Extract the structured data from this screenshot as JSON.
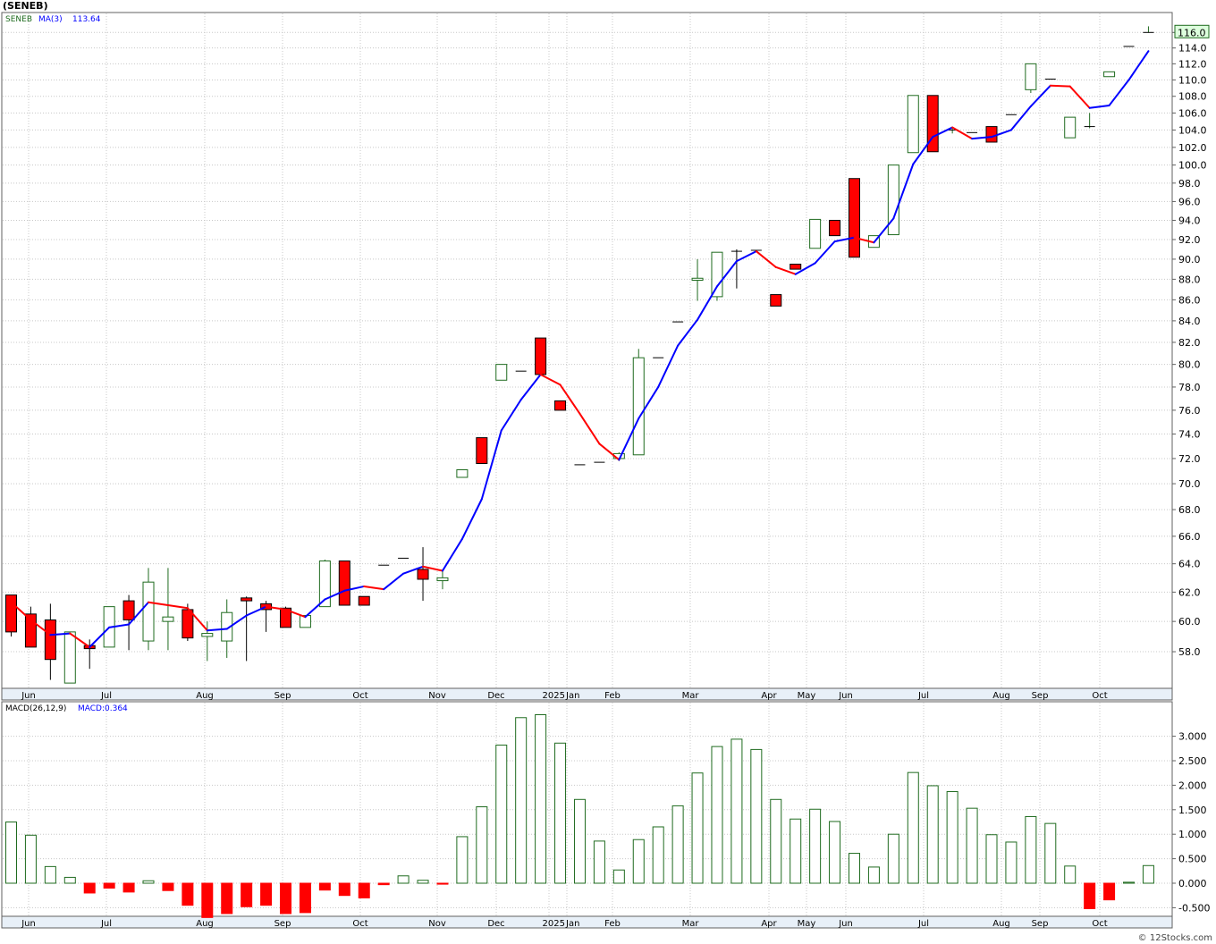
{
  "title": "(SENEB)",
  "watermark": "© 12Stocks.com",
  "price_legend": {
    "symbol": "SENEB",
    "ma_label": "MA(3)",
    "ma_value": "113.64"
  },
  "macd_legend": {
    "label": "MACD(26,12,9)",
    "value_label": "MACD:0.364"
  },
  "last_price_label": "116.0",
  "colors": {
    "up_candle": "#1f6b1f",
    "down_candle": "#ff0000",
    "ma_rising": "#0000ff",
    "ma_falling": "#ff0000",
    "macd_pos": "#1f6b1f",
    "macd_neg": "#ff0000",
    "axis_strip": "#e8f0f8",
    "grid": "#c8c8c8"
  },
  "chart_data": [
    {
      "type": "candlestick",
      "y_ticks": [
        "58.0",
        "60.0",
        "62.0",
        "64.0",
        "66.0",
        "68.0",
        "70.0",
        "72.0",
        "74.0",
        "76.0",
        "78.0",
        "80.0",
        "82.0",
        "84.0",
        "86.0",
        "88.0",
        "90.0",
        "92.0",
        "94.0",
        "96.0",
        "98.0",
        "100.0",
        "102.0",
        "104.0",
        "106.0",
        "108.0",
        "110.0",
        "112.0",
        "114.0",
        "116.0"
      ],
      "x_labels": [
        "Jun",
        "Jul",
        "Aug",
        "Sep",
        "Oct",
        "Nov",
        "Dec",
        "2025",
        "Jan",
        "Feb",
        "Mar",
        "Apr",
        "May",
        "Jun",
        "Jul",
        "Aug",
        "Sep",
        "Oct"
      ],
      "candles": [
        [
          61.8,
          61.8,
          59.0,
          59.3
        ],
        [
          60.5,
          61.0,
          58.3,
          58.3
        ],
        [
          60.1,
          61.2,
          56.2,
          57.5
        ],
        [
          56.0,
          59.2,
          56.0,
          59.3
        ],
        [
          58.4,
          58.8,
          56.9,
          58.2
        ],
        [
          58.3,
          61.0,
          58.3,
          61.0
        ],
        [
          61.4,
          61.8,
          58.1,
          60.1
        ],
        [
          58.7,
          63.7,
          58.1,
          62.7
        ],
        [
          60.0,
          63.7,
          58.1,
          60.3
        ],
        [
          60.8,
          61.2,
          58.7,
          58.9
        ],
        [
          59.0,
          60.0,
          57.4,
          59.2
        ],
        [
          58.7,
          61.5,
          57.6,
          60.6
        ],
        [
          61.6,
          61.7,
          57.4,
          61.4
        ],
        [
          61.2,
          61.4,
          59.3,
          60.8
        ],
        [
          60.9,
          61.0,
          59.6,
          59.6
        ],
        [
          59.6,
          60.4,
          59.6,
          60.4
        ],
        [
          61.0,
          64.3,
          61.0,
          64.2
        ],
        [
          64.2,
          64.2,
          61.1,
          61.1
        ],
        [
          61.7,
          61.7,
          61.1,
          61.1
        ],
        [
          63.9,
          63.9,
          63.9,
          63.9
        ],
        [
          64.4,
          64.4,
          64.4,
          64.4
        ],
        [
          63.6,
          65.2,
          61.4,
          62.9
        ],
        [
          62.8,
          63.6,
          62.2,
          63.0
        ],
        [
          70.5,
          71.1,
          70.5,
          71.1
        ],
        [
          73.7,
          73.7,
          71.6,
          71.6
        ],
        [
          78.6,
          80.0,
          78.6,
          80.0
        ],
        [
          79.4,
          79.4,
          79.4,
          79.4
        ],
        [
          82.4,
          82.4,
          79.1,
          79.1
        ],
        [
          76.8,
          76.8,
          76.0,
          76.0
        ],
        [
          71.5,
          71.5,
          71.5,
          71.5
        ],
        [
          71.7,
          71.7,
          71.7,
          71.7
        ],
        [
          72.0,
          72.5,
          71.8,
          72.4
        ],
        [
          72.3,
          81.4,
          72.3,
          80.6
        ],
        [
          80.6,
          80.6,
          80.6,
          80.6
        ],
        [
          83.9,
          83.9,
          83.9,
          83.9
        ],
        [
          87.9,
          90.0,
          85.9,
          88.1
        ],
        [
          86.3,
          90.7,
          85.9,
          90.7
        ],
        [
          90.8,
          91.0,
          87.1,
          90.7
        ],
        [
          90.9,
          90.9,
          90.9,
          90.9
        ],
        [
          86.5,
          86.5,
          85.4,
          85.4
        ],
        [
          89.5,
          89.5,
          89.0,
          89.0
        ],
        [
          91.1,
          94.1,
          91.1,
          94.1
        ],
        [
          94.0,
          94.0,
          92.4,
          92.4
        ],
        [
          98.5,
          98.5,
          90.2,
          90.2
        ],
        [
          91.2,
          92.4,
          91.2,
          92.4
        ],
        [
          92.5,
          100.0,
          92.5,
          100.0
        ],
        [
          101.4,
          108.1,
          101.4,
          108.1
        ],
        [
          108.1,
          108.1,
          101.5,
          101.5
        ],
        [
          103.9,
          104.2,
          103.6,
          104.0
        ],
        [
          103.7,
          103.7,
          103.7,
          103.7
        ],
        [
          104.4,
          104.4,
          102.6,
          102.6
        ],
        [
          105.8,
          105.8,
          105.8,
          105.8
        ],
        [
          108.8,
          112.0,
          108.4,
          112.0
        ],
        [
          110.1,
          110.1,
          110.1,
          110.1
        ],
        [
          103.1,
          105.5,
          103.1,
          105.5
        ],
        [
          104.4,
          106.0,
          104.2,
          104.4
        ],
        [
          110.4,
          111.0,
          110.4,
          111.0
        ],
        [
          114.2,
          114.2,
          114.2,
          114.2
        ],
        [
          116.0,
          116.8,
          116.0,
          116.0
        ]
      ],
      "ma3": [
        61.3,
        60.1,
        59.1,
        59.2,
        58.3,
        59.6,
        59.8,
        61.3,
        61.1,
        60.9,
        59.4,
        59.5,
        60.4,
        61.0,
        60.8,
        60.3,
        61.5,
        62.1,
        62.4,
        62.2,
        63.3,
        63.8,
        63.5,
        65.8,
        68.8,
        74.3,
        76.9,
        79.1,
        78.2,
        75.7,
        73.2,
        71.9,
        75.3,
        78.0,
        81.7,
        84.1,
        87.3,
        89.8,
        90.8,
        89.2,
        88.5,
        89.6,
        91.8,
        92.2,
        91.7,
        94.2,
        100.1,
        103.2,
        104.3,
        103.0,
        103.2,
        104.0,
        106.8,
        109.3,
        109.2,
        106.6,
        106.9,
        110.0,
        113.6
      ],
      "last": 116.0
    },
    {
      "type": "bar",
      "name": "MACD(26,12,9)",
      "y_ticks": [
        "-0.500",
        "0.000",
        "0.500",
        "1.000",
        "1.500",
        "2.000",
        "2.500",
        "3.000"
      ],
      "x_labels": [
        "Jun",
        "Jul",
        "Aug",
        "Sep",
        "Oct",
        "Nov",
        "Dec",
        "2025",
        "Jan",
        "Feb",
        "Mar",
        "Apr",
        "May",
        "Jun",
        "Jul",
        "Aug",
        "Sep",
        "Oct"
      ],
      "values": [
        1.25,
        0.98,
        0.34,
        0.12,
        -0.2,
        -0.1,
        -0.18,
        0.05,
        -0.15,
        -0.45,
        -0.7,
        -0.62,
        -0.48,
        -0.45,
        -0.62,
        -0.6,
        -0.14,
        -0.25,
        -0.3,
        -0.03,
        0.15,
        0.06,
        -0.02,
        0.95,
        1.56,
        2.82,
        3.38,
        3.44,
        2.86,
        1.71,
        0.86,
        0.27,
        0.89,
        1.15,
        1.58,
        2.25,
        2.79,
        2.94,
        2.73,
        1.71,
        1.31,
        1.51,
        1.26,
        0.61,
        0.33,
        1.0,
        2.26,
        1.99,
        1.87,
        1.53,
        0.99,
        0.84,
        1.36,
        1.22,
        0.35,
        -0.52,
        -0.34,
        0.02,
        0.36
      ]
    }
  ]
}
